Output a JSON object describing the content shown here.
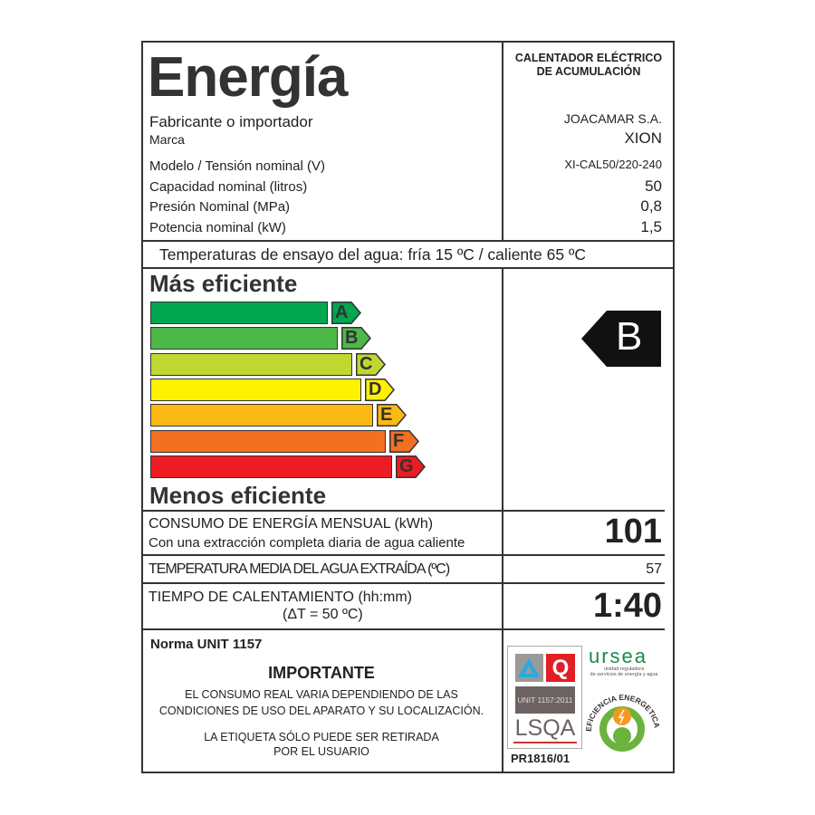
{
  "header": {
    "title": "Energía",
    "product_type_line1": "CALENTADOR ELÉCTRICO",
    "product_type_line2": "DE ACUMULACIÓN"
  },
  "specs": [
    {
      "label": "Fabricante o importador",
      "value": "JOACAMAR S.A."
    },
    {
      "label": "Marca",
      "value": "XION"
    },
    {
      "label": "Modelo / Tensión nominal (V)",
      "value": "XI-CAL50/220-240"
    },
    {
      "label": "Capacidad nominal (litros)",
      "value": "50"
    },
    {
      "label": "Presión Nominal (MPa)",
      "value": "0,8"
    },
    {
      "label": "Potencia nominal (kW)",
      "value": "1,5"
    }
  ],
  "test_temps": "Temperaturas de ensayo del agua: fría 15 ºC / caliente 65 ºC",
  "scale": {
    "top_label": "Más eficiente",
    "bottom_label": "Menos eficiente",
    "classes": [
      {
        "letter": "A",
        "color": "#00a650"
      },
      {
        "letter": "B",
        "color": "#4cb848"
      },
      {
        "letter": "C",
        "color": "#bfd730"
      },
      {
        "letter": "D",
        "color": "#fff200"
      },
      {
        "letter": "E",
        "color": "#fdb913"
      },
      {
        "letter": "F",
        "color": "#f37021"
      },
      {
        "letter": "G",
        "color": "#ed1c24"
      }
    ],
    "rating": "B"
  },
  "metrics": {
    "consumo_label": "CONSUMO DE ENERGÍA MENSUAL (kWh)",
    "consumo_sub": "Con una extracción completa diaria de agua caliente",
    "consumo_value": "101",
    "temp_label": "TEMPERATURA MEDIA DEL AGUA EXTRAÍDA (ºC)",
    "temp_value": "57",
    "tiempo_label": "TIEMPO DE CALENTAMIENTO (hh:mm)",
    "tiempo_sub": "(ΔT = 50 ºC)",
    "tiempo_value": "1:40"
  },
  "footer": {
    "norma": "Norma UNIT 1157",
    "importante": "IMPORTANTE",
    "note1_line1": "EL CONSUMO REAL VARIA DEPENDIENDO DE LAS",
    "note1_line2": "CONDICIONES DE USO DEL APARATO Y SU LOCALIZACIÓN.",
    "note2_line1": "LA ETIQUETA SÓLO PUEDE SER RETIRADA",
    "note2_line2": "POR EL USUARIO",
    "cert_unit": "UNIT 1157:2011",
    "cert_lsqa": "LSQA",
    "cert_code": "PR1816/01",
    "ursea": "ursea",
    "ursea_sub1": "unidad reguladora",
    "ursea_sub2": "de servicios de energía y agua",
    "eficiencia": "EFICIENCIA ENERGETICA"
  }
}
